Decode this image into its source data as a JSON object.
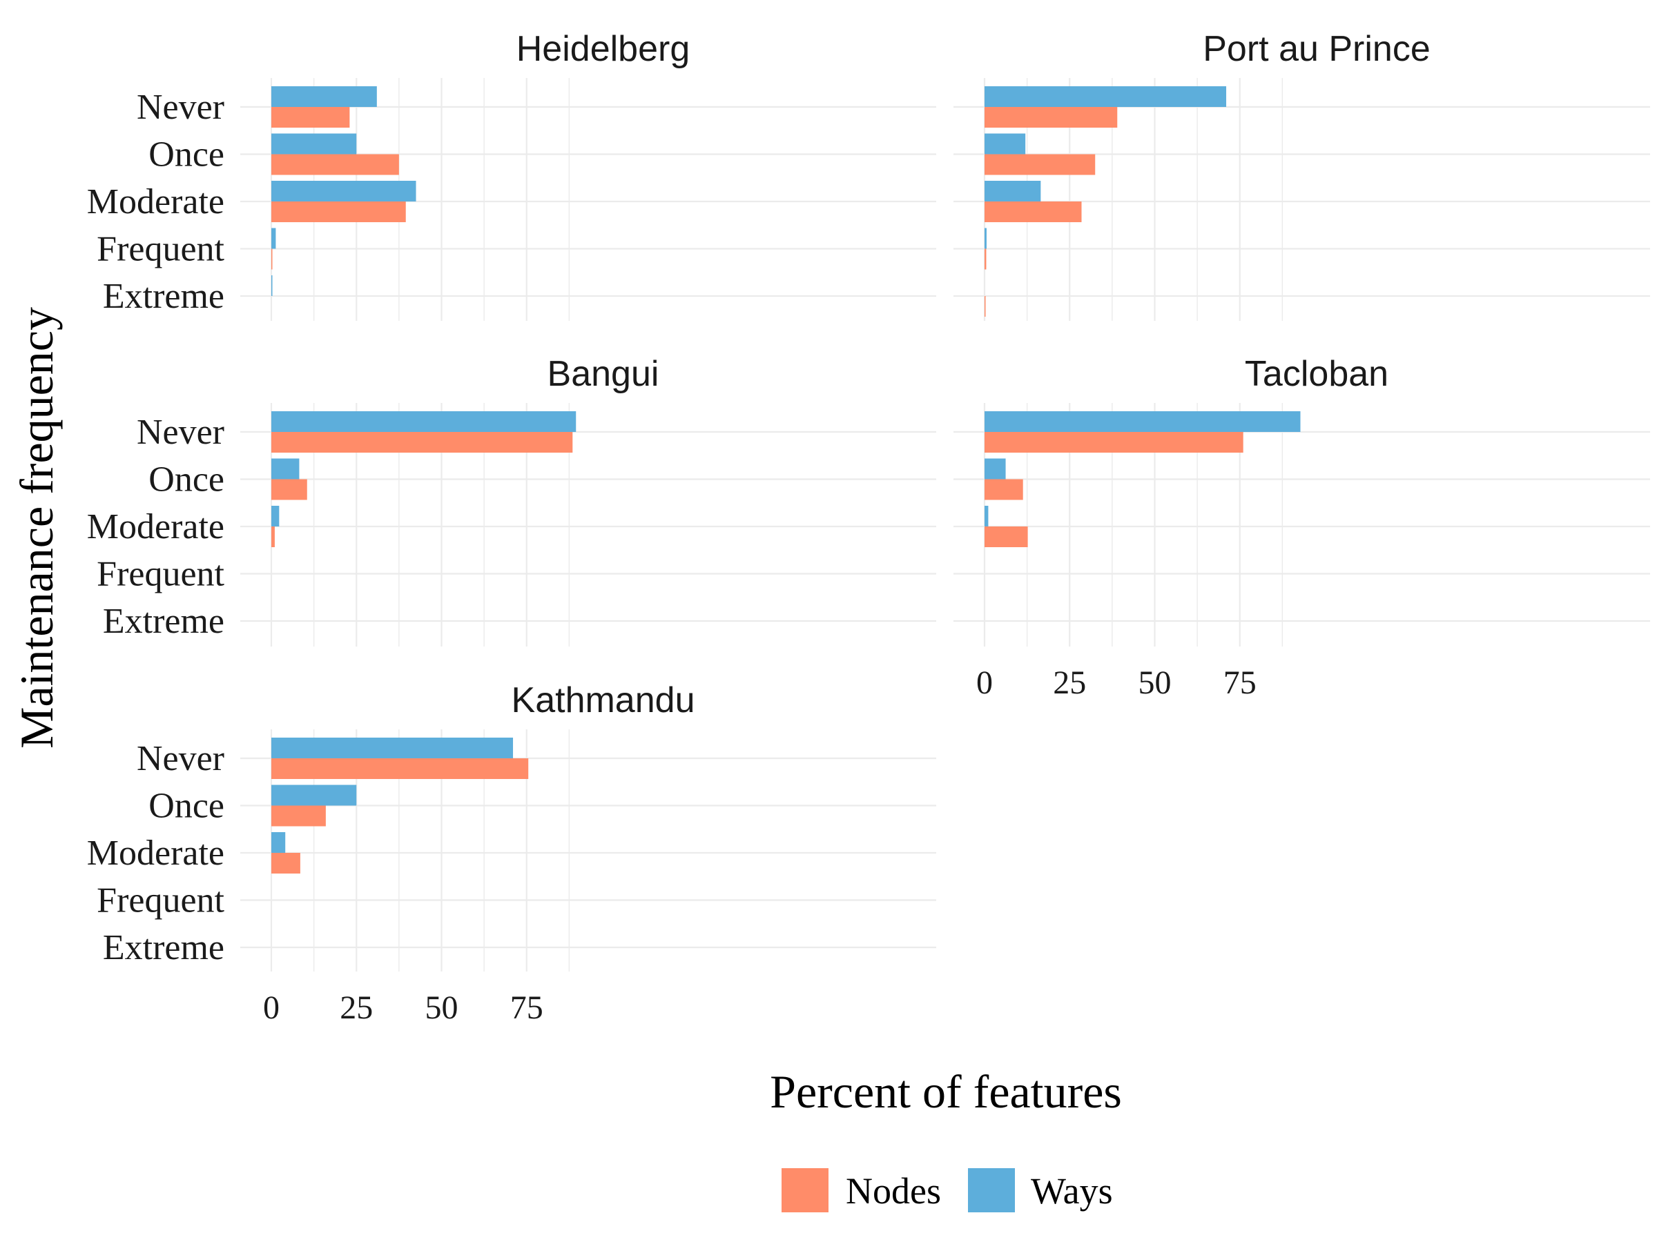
{
  "chart_data": {
    "type": "bar",
    "orientation": "horizontal",
    "layout": "faceted",
    "xlabel": "Percent of features",
    "ylabel": "Maintenance frequency",
    "xticks": [
      0,
      25,
      50,
      75
    ],
    "xlim": [
      0,
      97
    ],
    "categories": [
      "Never",
      "Once",
      "Moderate",
      "Frequent",
      "Extreme"
    ],
    "legend": {
      "position": "bottom",
      "entries": [
        {
          "name": "Nodes",
          "color": "#FF8C69"
        },
        {
          "name": "Ways",
          "color": "#5DAEDB"
        }
      ]
    },
    "grid": true,
    "facets": [
      {
        "title": "Heidelberg",
        "series": [
          {
            "name": "Nodes",
            "values": [
              23,
              37.5,
              39.5,
              0.2,
              0
            ]
          },
          {
            "name": "Ways",
            "values": [
              31,
              25,
              42.5,
              1.3,
              0.3
            ]
          }
        ]
      },
      {
        "title": "Port au Prince",
        "series": [
          {
            "name": "Nodes",
            "values": [
              39,
              32.5,
              28.5,
              0.5,
              0.1
            ]
          },
          {
            "name": "Ways",
            "values": [
              71,
              12,
              16.5,
              0.6,
              0
            ]
          }
        ]
      },
      {
        "title": "Bangui",
        "series": [
          {
            "name": "Nodes",
            "values": [
              88.5,
              10.5,
              1,
              0,
              0
            ]
          },
          {
            "name": "Ways",
            "values": [
              89.5,
              8.2,
              2.3,
              0,
              0
            ]
          }
        ]
      },
      {
        "title": "Tacloban",
        "series": [
          {
            "name": "Nodes",
            "values": [
              76,
              11.3,
              12.7,
              0,
              0
            ]
          },
          {
            "name": "Ways",
            "values": [
              92.8,
              6.2,
              1.1,
              0,
              0
            ]
          }
        ]
      },
      {
        "title": "Kathmandu",
        "series": [
          {
            "name": "Nodes",
            "values": [
              75.5,
              16,
              8.5,
              0,
              0
            ]
          },
          {
            "name": "Ways",
            "values": [
              71,
              25,
              4.1,
              0,
              0
            ]
          }
        ]
      }
    ]
  }
}
